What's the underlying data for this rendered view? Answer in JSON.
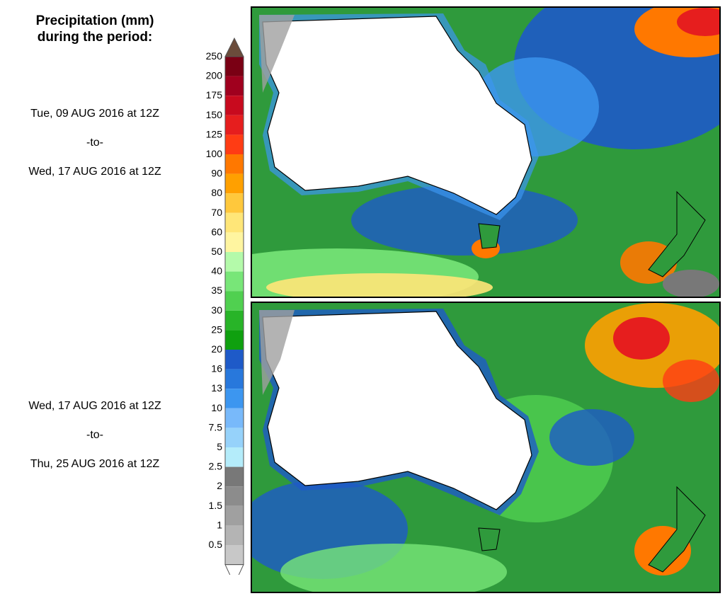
{
  "title": {
    "line1": "Precipitation (mm)",
    "line2": "during the period:"
  },
  "periods": [
    {
      "start": "Tue, 09 AUG 2016 at 12Z",
      "sep": "-to-",
      "end": "Wed, 17 AUG 2016 at 12Z"
    },
    {
      "start": "Wed, 17 AUG 2016 at 12Z",
      "sep": "-to-",
      "end": "Thu, 25 AUG 2016 at 12Z"
    }
  ],
  "legend": {
    "levels": [
      "0.5",
      "1",
      "1.5",
      "2",
      "2.5",
      "5",
      "7.5",
      "10",
      "13",
      "16",
      "20",
      "25",
      "30",
      "35",
      "40",
      "50",
      "60",
      "70",
      "80",
      "90",
      "100",
      "125",
      "150",
      "175",
      "200",
      "250"
    ],
    "colors": [
      "#c8c8c8",
      "#b4b4b4",
      "#a0a0a0",
      "#8c8c8c",
      "#787878",
      "#b4ecfa",
      "#96d2fa",
      "#78b9fa",
      "#3c96f0",
      "#2878dc",
      "#1e5ac8",
      "#0fa00f",
      "#28b428",
      "#50d050",
      "#78e678",
      "#b4faaa",
      "#fff5a0",
      "#ffe678",
      "#ffc83c",
      "#ffa000",
      "#ff7800",
      "#ff3c14",
      "#e61e1e",
      "#c80a1e",
      "#a0001e",
      "#7a0014"
    ],
    "over_color": "#6b4c3b",
    "under_color": "#ffffff"
  }
}
